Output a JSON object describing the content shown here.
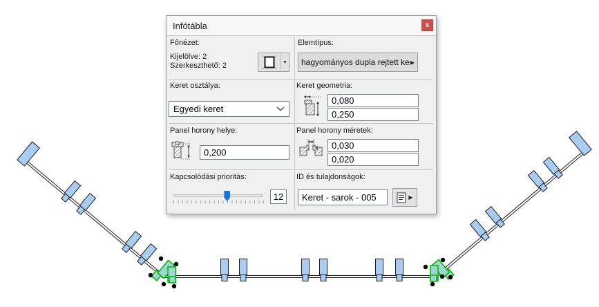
{
  "colors": {
    "element_fill": "#a9ccf0",
    "element_stroke": "#1a1a1a",
    "selection_green": "#0ab40a",
    "corner_fill": "#9ed6d2",
    "slider_blue": "#1c76d1",
    "close_red": "#c75050"
  },
  "dialog": {
    "title": "Infótábla",
    "close_glyph": "x",
    "main_view": {
      "label": "Főnézet:",
      "selected_line": "Kijelölve: 2",
      "editable_line": "Szerkeszthető: 2",
      "geometry_dropdown_glyph": "▼"
    },
    "element_type": {
      "label": "Elemtípus:",
      "button_text": "hagyományos dupla rejtett ke...",
      "flyout_glyph": "▶"
    },
    "frame_class": {
      "label": "Keret osztálya:",
      "value": "Egyedi keret"
    },
    "frame_geometry": {
      "label": "Keret geometria:",
      "width_value": "0,080",
      "height_value": "0,250"
    },
    "panel_groove_position": {
      "label": "Panel horony helye:",
      "value": "0,200"
    },
    "panel_groove_size": {
      "label": "Panel horony méretek:",
      "width_value": "0,030",
      "depth_value": "0,020"
    },
    "connection_priority": {
      "label": "Kapcsolódási prioritás:",
      "value": "12",
      "slider_percent": 60
    },
    "id_properties": {
      "label": "ID és tulajdonságok:",
      "value": "Keret - sarok - 005",
      "flyout_glyph": "▶"
    }
  }
}
